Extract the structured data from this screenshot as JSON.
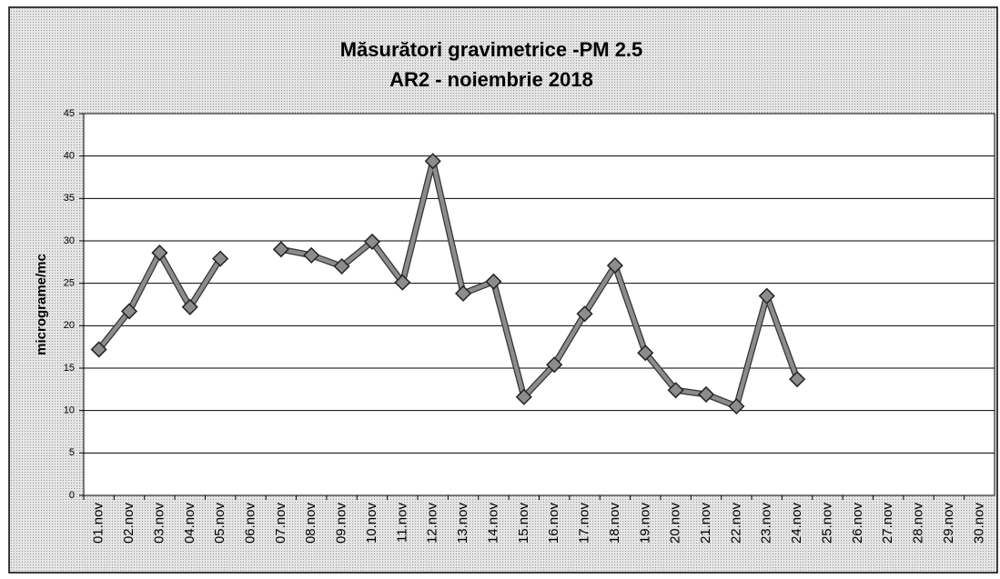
{
  "chart_data": {
    "type": "line",
    "title": "Măsurători gravimetrice -PM 2.5",
    "subtitle": "AR2 - noiembrie 2018",
    "y_label": "micrograme/mc",
    "categories": [
      "01.nov",
      "02.nov",
      "03.nov",
      "04.nov",
      "05.nov",
      "06.nov",
      "07.nov",
      "08.nov",
      "09.nov",
      "10.nov",
      "11.nov",
      "12.nov",
      "13.nov",
      "14.nov",
      "15.nov",
      "16.nov",
      "17.nov",
      "18.nov",
      "19.nov",
      "20.nov",
      "21.nov",
      "22.nov",
      "23.nov",
      "24.nov",
      "25.nov",
      "26.nov",
      "27.nov",
      "28.nov",
      "29.nov",
      "30.nov"
    ],
    "values": [
      17.2,
      21.7,
      28.6,
      22.2,
      27.9,
      null,
      29.0,
      28.3,
      27.0,
      29.9,
      25.1,
      39.4,
      23.8,
      25.2,
      11.6,
      15.4,
      21.4,
      27.1,
      16.8,
      12.4,
      11.9,
      10.5,
      23.5,
      13.7,
      null,
      null,
      null,
      null,
      null,
      null
    ],
    "color": "#8c8c8c",
    "ylim": [
      0,
      45
    ],
    "yticks": [
      0,
      5,
      10,
      15,
      20,
      25,
      30,
      35,
      40,
      45
    ],
    "grid": true
  }
}
